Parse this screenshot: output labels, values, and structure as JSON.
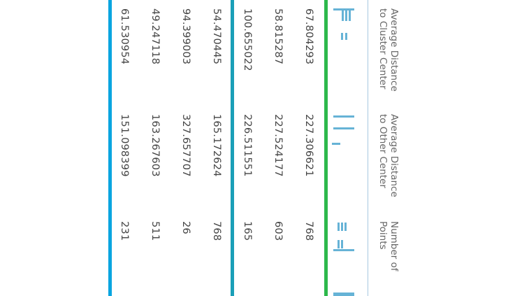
{
  "table": {
    "headers": [
      "Average Distance to Cluster Center",
      "Average Distance to Other Center",
      "Number of Points"
    ],
    "rows": [
      {
        "avg_cluster": "67.804293",
        "avg_other": "227.306621",
        "points": "768"
      },
      {
        "avg_cluster": "58.815287",
        "avg_other": "227.524177",
        "points": "603"
      },
      {
        "avg_cluster": "100.655022",
        "avg_other": "226.511551",
        "points": "165"
      },
      {
        "avg_cluster": "54.470445",
        "avg_other": "165.172624",
        "points": "768"
      },
      {
        "avg_cluster": "94.399003",
        "avg_other": "327.657707",
        "points": "26"
      },
      {
        "avg_cluster": "49.247118",
        "avg_other": "163.267603",
        "points": "511"
      },
      {
        "avg_cluster": "61.530954",
        "avg_other": "151.098399",
        "points": "231"
      }
    ]
  },
  "colors": {
    "divider_green": "#2db84c",
    "divider_teal": "#1a9fb8",
    "divider_blue": "#0aa5e0",
    "header_rule": "#a8c8e0",
    "histogram": "#66b3d6"
  }
}
